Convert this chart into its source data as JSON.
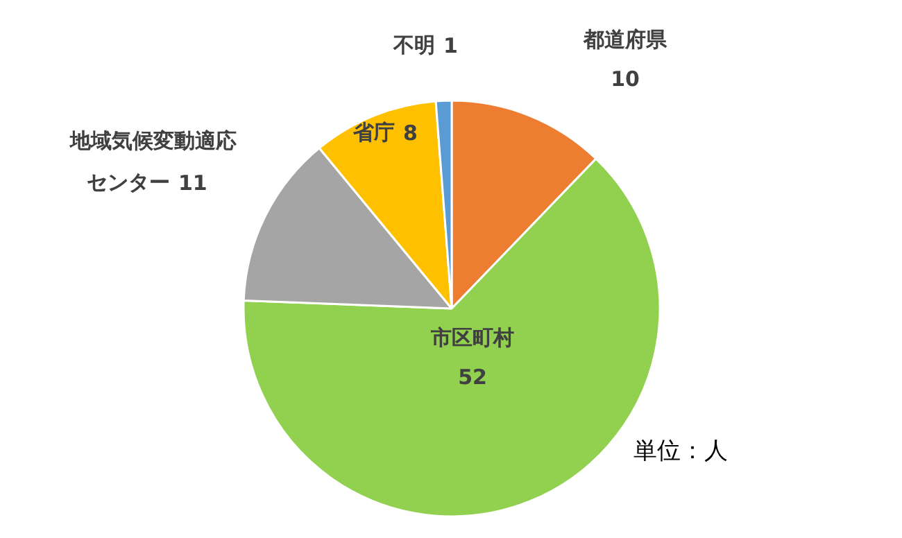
{
  "chart_data": {
    "type": "pie",
    "categories": [
      "都道府県",
      "市区町村",
      "地域気候変動適応センター",
      "省庁",
      "不明"
    ],
    "values": [
      10,
      52,
      11,
      8,
      1
    ],
    "colors": [
      "#ed7d31",
      "#92d050",
      "#a5a5a5",
      "#ffc000",
      "#5b9bd5"
    ],
    "data_labels": true,
    "annotations": [
      "単位：人"
    ]
  }
}
